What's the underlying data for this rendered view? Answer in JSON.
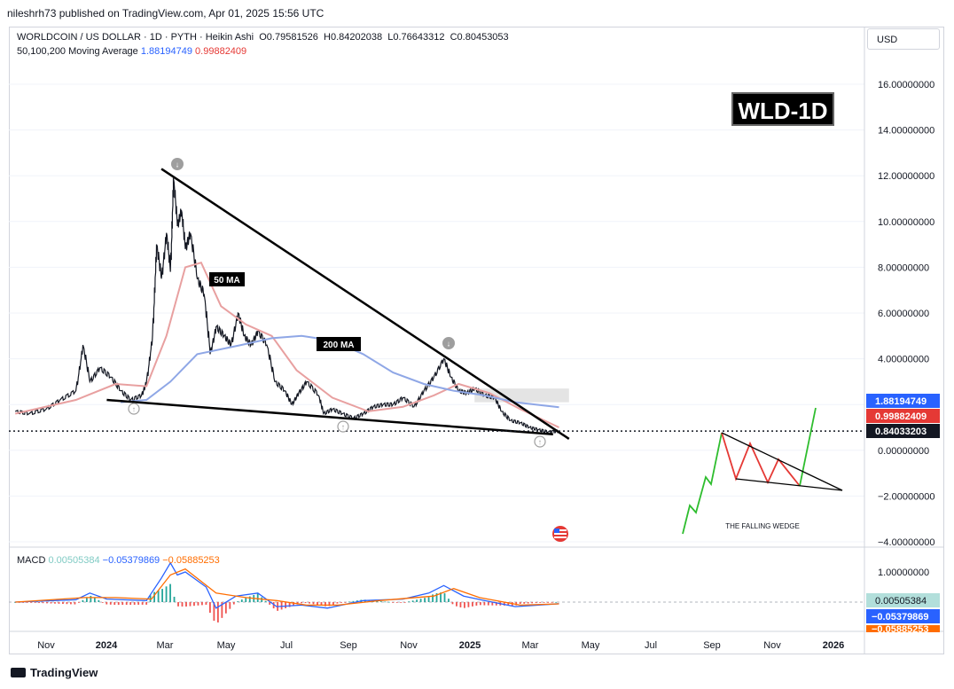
{
  "header": {
    "publisher_line": "nileshrh73 published on TradingView.com, Apr 01, 2025 15:56 UTC"
  },
  "legend": {
    "symbol": "WORLDCOIN / US DOLLAR · 1D · PYTH · Heikin Ashi",
    "ohlc": {
      "O": "0.79581526",
      "H": "0.84202038",
      "L": "0.76643312",
      "C": "0.80453053"
    },
    "ma_label": "50,100,200 Moving Average",
    "ma_value_1": "1.88194749",
    "ma_value_2": "0.99882409"
  },
  "currency_button": "USD",
  "badge": "WLD-1D",
  "annotations": {
    "ma50": "50 MA",
    "ma200": "200 MA",
    "wedge": "THE FALLING WEDGE"
  },
  "price_tags": [
    {
      "value": "1.88194749",
      "color": "#2962ff"
    },
    {
      "value": "0.99882409",
      "color": "#e53935"
    },
    {
      "value": "0.84033203",
      "color": "#131722"
    }
  ],
  "macd": {
    "label": "MACD",
    "hist": "0.00505384",
    "macd": "−0.05379869",
    "signal": "−0.05885253",
    "axis_ticks": [
      "1.00000000",
      "0.00000000"
    ]
  },
  "footer": {
    "brand": "TradingView"
  },
  "colors": {
    "ma50": "#e8a0a0",
    "ma200": "#8fa7e6",
    "candles": "#131722",
    "macd_line": "#2962ff",
    "signal_line": "#ff6d00",
    "hist": "#26a69a",
    "hist_neg": "#ef5350",
    "wedge_green": "#2ebd2e",
    "wedge_red": "#e53935"
  },
  "chart_data": {
    "type": "line",
    "y_axis": {
      "ticks": [
        "16.00000000",
        "14.00000000",
        "12.00000000",
        "10.00000000",
        "8.00000000",
        "6.00000000",
        "4.00000000",
        "2.00000000",
        "0.00000000",
        "−2.00000000",
        "−4.00000000"
      ],
      "ylim": [
        -4,
        17
      ]
    },
    "x_axis": {
      "ticks": [
        "Nov",
        "2024",
        "Mar",
        "May",
        "Jul",
        "Sep",
        "Nov",
        "2025",
        "Mar",
        "May",
        "Jul",
        "Sep",
        "Nov",
        "2026"
      ]
    },
    "price_points": [
      [
        "2023-10-01",
        1.7
      ],
      [
        "2023-10-15",
        1.6
      ],
      [
        "2023-11-01",
        1.8
      ],
      [
        "2023-11-15",
        2.2
      ],
      [
        "2023-12-01",
        2.6
      ],
      [
        "2023-12-08",
        4.6
      ],
      [
        "2023-12-15",
        3.0
      ],
      [
        "2023-12-25",
        3.6
      ],
      [
        "2024-01-05",
        3.2
      ],
      [
        "2024-01-15",
        2.6
      ],
      [
        "2024-01-25",
        2.2
      ],
      [
        "2024-02-05",
        2.4
      ],
      [
        "2024-02-10",
        3.0
      ],
      [
        "2024-02-16",
        5.0
      ],
      [
        "2024-02-20",
        9.0
      ],
      [
        "2024-02-25",
        7.5
      ],
      [
        "2024-03-01",
        9.5
      ],
      [
        "2024-03-05",
        7.8
      ],
      [
        "2024-03-08",
        11.9
      ],
      [
        "2024-03-12",
        9.8
      ],
      [
        "2024-03-16",
        10.5
      ],
      [
        "2024-03-20",
        8.8
      ],
      [
        "2024-03-25",
        9.5
      ],
      [
        "2024-04-01",
        7.5
      ],
      [
        "2024-04-08",
        6.8
      ],
      [
        "2024-04-14",
        4.2
      ],
      [
        "2024-04-20",
        5.4
      ],
      [
        "2024-04-28",
        5.0
      ],
      [
        "2024-05-05",
        4.6
      ],
      [
        "2024-05-12",
        6.0
      ],
      [
        "2024-05-18",
        5.0
      ],
      [
        "2024-05-25",
        4.6
      ],
      [
        "2024-06-01",
        5.2
      ],
      [
        "2024-06-10",
        4.6
      ],
      [
        "2024-06-18",
        3.0
      ],
      [
        "2024-06-28",
        2.6
      ],
      [
        "2024-07-05",
        2.0
      ],
      [
        "2024-07-12",
        2.5
      ],
      [
        "2024-07-20",
        3.0
      ],
      [
        "2024-08-01",
        2.4
      ],
      [
        "2024-08-06",
        1.6
      ],
      [
        "2024-08-15",
        1.8
      ],
      [
        "2024-08-25",
        1.6
      ],
      [
        "2024-09-05",
        1.4
      ],
      [
        "2024-09-15",
        1.6
      ],
      [
        "2024-09-25",
        1.9
      ],
      [
        "2024-10-05",
        2.0
      ],
      [
        "2024-10-15",
        2.0
      ],
      [
        "2024-10-25",
        2.3
      ],
      [
        "2024-11-05",
        1.9
      ],
      [
        "2024-11-15",
        2.6
      ],
      [
        "2024-11-25",
        3.2
      ],
      [
        "2024-12-05",
        4.0
      ],
      [
        "2024-12-12",
        3.2
      ],
      [
        "2024-12-20",
        2.6
      ],
      [
        "2024-12-28",
        2.5
      ],
      [
        "2025-01-05",
        2.7
      ],
      [
        "2025-01-15",
        2.4
      ],
      [
        "2025-01-25",
        2.3
      ],
      [
        "2025-02-01",
        1.7
      ],
      [
        "2025-02-10",
        1.3
      ],
      [
        "2025-02-20",
        1.2
      ],
      [
        "2025-03-01",
        1.0
      ],
      [
        "2025-03-10",
        0.9
      ],
      [
        "2025-03-20",
        0.8
      ],
      [
        "2025-03-31",
        0.84
      ]
    ],
    "series": [
      {
        "name": "50 MA",
        "points": [
          [
            "2023-10-01",
            1.6
          ],
          [
            "2023-12-01",
            2.2
          ],
          [
            "2024-01-10",
            2.9
          ],
          [
            "2024-02-10",
            2.8
          ],
          [
            "2024-03-01",
            5.0
          ],
          [
            "2024-03-20",
            8.0
          ],
          [
            "2024-04-05",
            8.2
          ],
          [
            "2024-04-25",
            6.3
          ],
          [
            "2024-05-20",
            5.5
          ],
          [
            "2024-06-15",
            5.0
          ],
          [
            "2024-07-10",
            3.5
          ],
          [
            "2024-08-15",
            2.3
          ],
          [
            "2024-09-20",
            1.7
          ],
          [
            "2024-10-25",
            1.9
          ],
          [
            "2024-11-25",
            2.4
          ],
          [
            "2024-12-20",
            2.9
          ],
          [
            "2025-01-20",
            2.5
          ],
          [
            "2025-02-20",
            1.8
          ],
          [
            "2025-03-31",
            1.0
          ]
        ]
      },
      {
        "name": "200 MA",
        "points": [
          [
            "2024-01-15",
            2.1
          ],
          [
            "2024-02-10",
            2.2
          ],
          [
            "2024-03-05",
            3.0
          ],
          [
            "2024-04-01",
            4.2
          ],
          [
            "2024-05-15",
            4.6
          ],
          [
            "2024-06-15",
            4.9
          ],
          [
            "2024-07-15",
            5.0
          ],
          [
            "2024-08-15",
            4.8
          ],
          [
            "2024-09-15",
            4.2
          ],
          [
            "2024-10-15",
            3.4
          ],
          [
            "2024-11-15",
            2.9
          ],
          [
            "2024-12-15",
            2.6
          ],
          [
            "2025-01-15",
            2.4
          ],
          [
            "2025-02-15",
            2.1
          ],
          [
            "2025-03-31",
            1.88
          ]
        ]
      }
    ],
    "trendlines": {
      "upper": [
        [
          "2024-02-25",
          12.3
        ],
        [
          "2025-04-10",
          0.5
        ]
      ],
      "lower": [
        [
          "2024-01-01",
          2.2
        ],
        [
          "2025-03-25",
          0.7
        ]
      ]
    },
    "resistance_zone": [
      [
        "2025-01-05",
        2.1
      ],
      [
        "2025-04-10",
        2.7
      ]
    ],
    "current_price": 0.84033203,
    "macd": {
      "points": [
        [
          "2023-10-01",
          0.0
        ],
        [
          "2023-12-01",
          0.08
        ],
        [
          "2023-12-15",
          0.3
        ],
        [
          "2024-01-01",
          0.1
        ],
        [
          "2024-02-10",
          0.05
        ],
        [
          "2024-02-25",
          0.8
        ],
        [
          "2024-03-05",
          1.3
        ],
        [
          "2024-03-12",
          0.9
        ],
        [
          "2024-03-20",
          1.0
        ],
        [
          "2024-04-10",
          0.5
        ],
        [
          "2024-04-20",
          -0.2
        ],
        [
          "2024-05-10",
          0.2
        ],
        [
          "2024-06-01",
          0.3
        ],
        [
          "2024-06-20",
          -0.15
        ],
        [
          "2024-07-15",
          -0.1
        ],
        [
          "2024-08-10",
          -0.2
        ],
        [
          "2024-09-15",
          0.05
        ],
        [
          "2024-10-25",
          0.1
        ],
        [
          "2024-11-20",
          0.3
        ],
        [
          "2024-12-05",
          0.55
        ],
        [
          "2024-12-25",
          0.2
        ],
        [
          "2025-01-15",
          0.05
        ],
        [
          "2025-02-15",
          -0.15
        ],
        [
          "2025-03-31",
          -0.054
        ]
      ],
      "signal_points": [
        [
          "2023-10-01",
          0.0
        ],
        [
          "2023-12-10",
          0.15
        ],
        [
          "2024-01-10",
          0.15
        ],
        [
          "2024-02-15",
          0.1
        ],
        [
          "2024-03-05",
          0.9
        ],
        [
          "2024-03-20",
          1.1
        ],
        [
          "2024-04-20",
          0.3
        ],
        [
          "2024-05-20",
          0.15
        ],
        [
          "2024-06-20",
          0.05
        ],
        [
          "2024-07-20",
          -0.1
        ],
        [
          "2024-08-20",
          -0.1
        ],
        [
          "2024-10-01",
          0.05
        ],
        [
          "2024-11-25",
          0.2
        ],
        [
          "2024-12-15",
          0.45
        ],
        [
          "2025-01-10",
          0.15
        ],
        [
          "2025-02-20",
          -0.1
        ],
        [
          "2025-03-31",
          -0.059
        ]
      ],
      "ylim": [
        -0.6,
        1.5
      ]
    }
  }
}
